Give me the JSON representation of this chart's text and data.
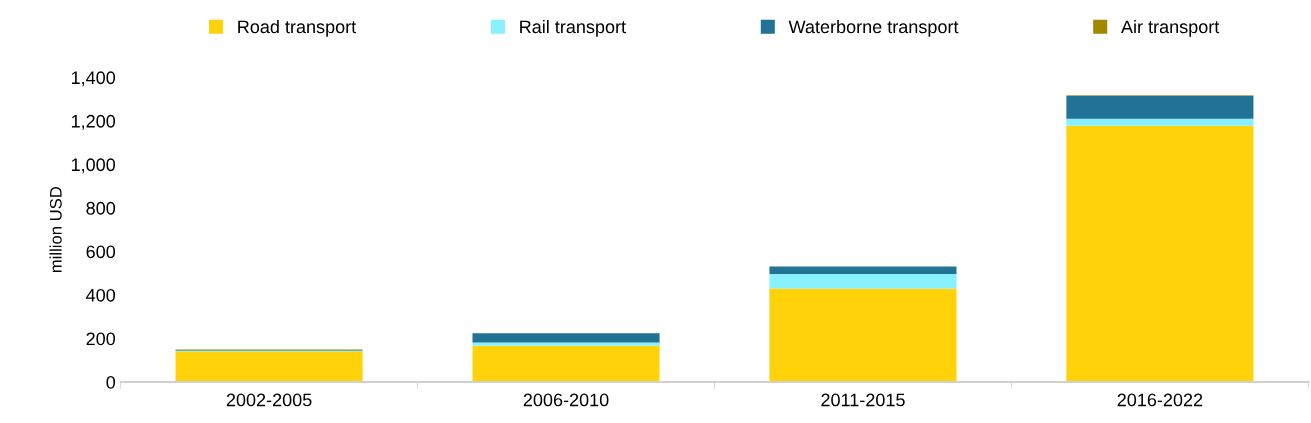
{
  "chart_data": {
    "type": "bar",
    "stacked": true,
    "ylabel": "million USD",
    "categories": [
      "2002-2005",
      "2006-2010",
      "2011-2015",
      "2016-2022"
    ],
    "series": [
      {
        "name": "Road transport",
        "color": "#ffd20a",
        "values": [
          138,
          166,
          430,
          1178
        ]
      },
      {
        "name": "Rail transport",
        "color": "#88f0ff",
        "values": [
          4,
          16,
          66,
          32
        ]
      },
      {
        "name": "Waterborne transport",
        "color": "#227296",
        "values": [
          2,
          42,
          35,
          106
        ]
      },
      {
        "name": "Air transport",
        "color": "#a08800",
        "values": [
          5,
          null,
          null,
          2
        ]
      }
    ],
    "ylim": [
      0,
      1400
    ],
    "yticks": [
      {
        "value": 0,
        "label": "0"
      },
      {
        "value": 200,
        "label": "200"
      },
      {
        "value": 400,
        "label": "400"
      },
      {
        "value": 600,
        "label": "600"
      },
      {
        "value": 800,
        "label": "800"
      },
      {
        "value": 1000,
        "label": "1,000"
      },
      {
        "value": 1200,
        "label": "1,200"
      },
      {
        "value": 1400,
        "label": "1,400"
      }
    ],
    "grid": false,
    "legend": "top"
  }
}
